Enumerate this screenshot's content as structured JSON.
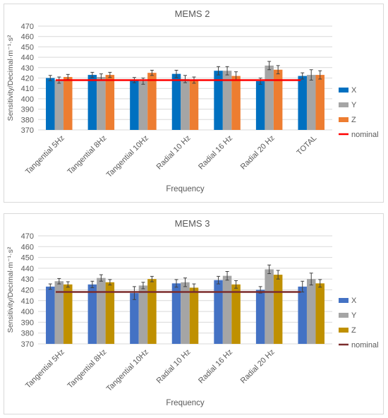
{
  "chart_data": [
    {
      "type": "bar",
      "title": "MEMS 2",
      "xlabel": "Frequency",
      "ylabel": "Sensitivity/Decimal·m⁻¹·s²",
      "ylim": [
        370,
        470
      ],
      "ytick_step": 10,
      "grid": true,
      "legend_position": "right",
      "categories": [
        "Tangential 5Hz",
        "Tangential 8Hz",
        "Tangential 10Hz",
        "Radial 10 Hz",
        "Radial 16 Hz",
        "Radial 20 Hz",
        "TOTAL"
      ],
      "series": [
        {
          "name": "X",
          "color": "#0070c0",
          "values": [
            420,
            423,
            418,
            424,
            427,
            417,
            422
          ],
          "errors": [
            2.5,
            2.5,
            2.5,
            3.5,
            4,
            3,
            3
          ]
        },
        {
          "name": "Y",
          "color": "#a5a5a5",
          "values": [
            418,
            421,
            417,
            419,
            427,
            432,
            423
          ],
          "errors": [
            3,
            3,
            3,
            3.5,
            4,
            4,
            5
          ]
        },
        {
          "name": "Z",
          "color": "#ed7d31",
          "values": [
            421,
            423,
            425,
            418,
            422,
            428,
            423
          ],
          "errors": [
            2.5,
            2.5,
            2.5,
            3,
            4,
            4,
            4
          ]
        }
      ],
      "reference_line": {
        "name": "nominal",
        "value": 418,
        "color": "#ff0000"
      }
    },
    {
      "type": "bar",
      "title": "MEMS 3",
      "xlabel": "Frequency",
      "ylabel": "Sensitivity/Decimal·m⁻¹·s²",
      "ylim": [
        370,
        470
      ],
      "ytick_step": 10,
      "grid": true,
      "legend_position": "right",
      "categories": [
        "Tangential 5Hz",
        "Tangential 8Hz",
        "Tangential 10Hz",
        "Radial 10 Hz",
        "Radial 16 Hz",
        "Radial 20 Hz",
        ""
      ],
      "series": [
        {
          "name": "X",
          "color": "#4472c4",
          "values": [
            423,
            425,
            417,
            426,
            429,
            420,
            423
          ],
          "errors": [
            2.5,
            3,
            6,
            3.5,
            3.5,
            3,
            5
          ]
        },
        {
          "name": "Y",
          "color": "#a5a5a5",
          "values": [
            428,
            431,
            424,
            427,
            433,
            439,
            430
          ],
          "errors": [
            2.5,
            3,
            3,
            4,
            4,
            4,
            5.5
          ]
        },
        {
          "name": "Z",
          "color": "#bf9000",
          "values": [
            425,
            427,
            430,
            422,
            425,
            434,
            426
          ],
          "errors": [
            2.5,
            2.5,
            2.5,
            3.5,
            3.5,
            4,
            3.5
          ]
        }
      ],
      "reference_line": {
        "name": "nominal",
        "value": 418,
        "color": "#7b2c2c"
      }
    }
  ]
}
